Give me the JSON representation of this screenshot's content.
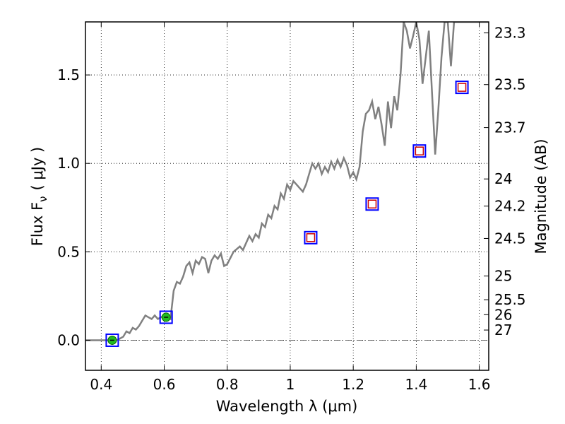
{
  "chart_data": {
    "type": "line",
    "xlabel": "Wavelength  λ (μm)",
    "ylabel_left": "Flux  F",
    "ylabel_left_sub": "ν",
    "ylabel_left_unit": "( μJy )",
    "ylabel_right": "Magnitude (AB)",
    "xlim": [
      0.35,
      1.63
    ],
    "ylim": [
      -0.17,
      1.8
    ],
    "grid": true,
    "x_ticks": [
      0.4,
      0.6,
      0.8,
      1.0,
      1.2,
      1.4,
      1.6
    ],
    "x_tick_labels": [
      "0.4",
      "0.6",
      "0.8",
      "1",
      "1.2",
      "1.4",
      "1.6"
    ],
    "y_ticks": [
      0.0,
      0.5,
      1.0,
      1.5
    ],
    "y_tick_labels": [
      "0.0",
      "0.5",
      "1.0",
      "1.5"
    ],
    "right_ticks": [
      {
        "label": "23.3",
        "mag": 23.3
      },
      {
        "label": "23.5",
        "mag": 23.5
      },
      {
        "label": "23.7",
        "mag": 23.7
      },
      {
        "label": "24",
        "mag": 24.0
      },
      {
        "label": "24.2",
        "mag": 24.2
      },
      {
        "label": "24.5",
        "mag": 24.5
      },
      {
        "label": "25",
        "mag": 25.0
      },
      {
        "label": "25.5",
        "mag": 25.5
      },
      {
        "label": "26",
        "mag": 26.0
      },
      {
        "label": "27",
        "mag": 27.0
      }
    ],
    "model_spectrum": {
      "color": "#808080",
      "points": [
        [
          0.35,
          0.0
        ],
        [
          0.43,
          0.0
        ],
        [
          0.45,
          0.0
        ],
        [
          0.47,
          0.02
        ],
        [
          0.48,
          0.05
        ],
        [
          0.49,
          0.04
        ],
        [
          0.5,
          0.07
        ],
        [
          0.51,
          0.06
        ],
        [
          0.52,
          0.08
        ],
        [
          0.53,
          0.11
        ],
        [
          0.54,
          0.14
        ],
        [
          0.55,
          0.13
        ],
        [
          0.56,
          0.12
        ],
        [
          0.57,
          0.14
        ],
        [
          0.58,
          0.12
        ],
        [
          0.59,
          0.13
        ],
        [
          0.6,
          0.14
        ],
        [
          0.61,
          0.13
        ],
        [
          0.62,
          0.12
        ],
        [
          0.63,
          0.28
        ],
        [
          0.64,
          0.33
        ],
        [
          0.65,
          0.32
        ],
        [
          0.66,
          0.36
        ],
        [
          0.67,
          0.42
        ],
        [
          0.68,
          0.44
        ],
        [
          0.69,
          0.38
        ],
        [
          0.7,
          0.45
        ],
        [
          0.71,
          0.43
        ],
        [
          0.72,
          0.47
        ],
        [
          0.73,
          0.46
        ],
        [
          0.74,
          0.38
        ],
        [
          0.75,
          0.45
        ],
        [
          0.76,
          0.48
        ],
        [
          0.77,
          0.46
        ],
        [
          0.78,
          0.49
        ],
        [
          0.79,
          0.42
        ],
        [
          0.8,
          0.43
        ],
        [
          0.82,
          0.5
        ],
        [
          0.84,
          0.53
        ],
        [
          0.85,
          0.51
        ],
        [
          0.86,
          0.55
        ],
        [
          0.87,
          0.59
        ],
        [
          0.88,
          0.56
        ],
        [
          0.89,
          0.6
        ],
        [
          0.9,
          0.58
        ],
        [
          0.91,
          0.66
        ],
        [
          0.92,
          0.64
        ],
        [
          0.93,
          0.71
        ],
        [
          0.94,
          0.69
        ],
        [
          0.95,
          0.76
        ],
        [
          0.96,
          0.74
        ],
        [
          0.97,
          0.83
        ],
        [
          0.98,
          0.8
        ],
        [
          0.99,
          0.88
        ],
        [
          1.0,
          0.85
        ],
        [
          1.01,
          0.9
        ],
        [
          1.02,
          0.88
        ],
        [
          1.03,
          0.86
        ],
        [
          1.04,
          0.84
        ],
        [
          1.05,
          0.88
        ],
        [
          1.06,
          0.94
        ],
        [
          1.07,
          1.0
        ],
        [
          1.08,
          0.97
        ],
        [
          1.09,
          1.0
        ],
        [
          1.1,
          0.94
        ],
        [
          1.11,
          0.98
        ],
        [
          1.12,
          0.95
        ],
        [
          1.13,
          1.01
        ],
        [
          1.14,
          0.97
        ],
        [
          1.15,
          1.02
        ],
        [
          1.16,
          0.98
        ],
        [
          1.17,
          1.03
        ],
        [
          1.18,
          0.99
        ],
        [
          1.19,
          0.92
        ],
        [
          1.2,
          0.95
        ],
        [
          1.21,
          0.91
        ],
        [
          1.22,
          0.98
        ],
        [
          1.23,
          1.18
        ],
        [
          1.24,
          1.28
        ],
        [
          1.25,
          1.3
        ],
        [
          1.26,
          1.35
        ],
        [
          1.27,
          1.25
        ],
        [
          1.28,
          1.32
        ],
        [
          1.29,
          1.22
        ],
        [
          1.3,
          1.1
        ],
        [
          1.31,
          1.35
        ],
        [
          1.32,
          1.2
        ],
        [
          1.33,
          1.38
        ],
        [
          1.34,
          1.3
        ],
        [
          1.35,
          1.5
        ],
        [
          1.36,
          1.8
        ],
        [
          1.37,
          1.75
        ],
        [
          1.38,
          1.65
        ],
        [
          1.39,
          1.72
        ],
        [
          1.4,
          1.8
        ],
        [
          1.41,
          1.7
        ],
        [
          1.42,
          1.45
        ],
        [
          1.43,
          1.6
        ],
        [
          1.44,
          1.75
        ],
        [
          1.45,
          1.4
        ],
        [
          1.46,
          1.05
        ],
        [
          1.47,
          1.3
        ],
        [
          1.48,
          1.6
        ],
        [
          1.49,
          1.8
        ],
        [
          1.5,
          1.8
        ],
        [
          1.51,
          1.55
        ],
        [
          1.52,
          1.8
        ],
        [
          1.63,
          1.8
        ]
      ]
    },
    "photometry": [
      {
        "x": 0.435,
        "y": 0.0,
        "detected": true
      },
      {
        "x": 0.606,
        "y": 0.13,
        "detected": true
      },
      {
        "x": 1.065,
        "y": 0.58,
        "detected": false
      },
      {
        "x": 1.26,
        "y": 0.77,
        "detected": false
      },
      {
        "x": 1.41,
        "y": 1.07,
        "detected": false
      },
      {
        "x": 1.545,
        "y": 1.43,
        "detected": false
      }
    ],
    "colors": {
      "model": "#808080",
      "box_blue": "#0000ff",
      "box_red": "#cc0000",
      "detected_fill": "#22bb22",
      "grid": "#000000",
      "zero_line": "#555555"
    }
  }
}
